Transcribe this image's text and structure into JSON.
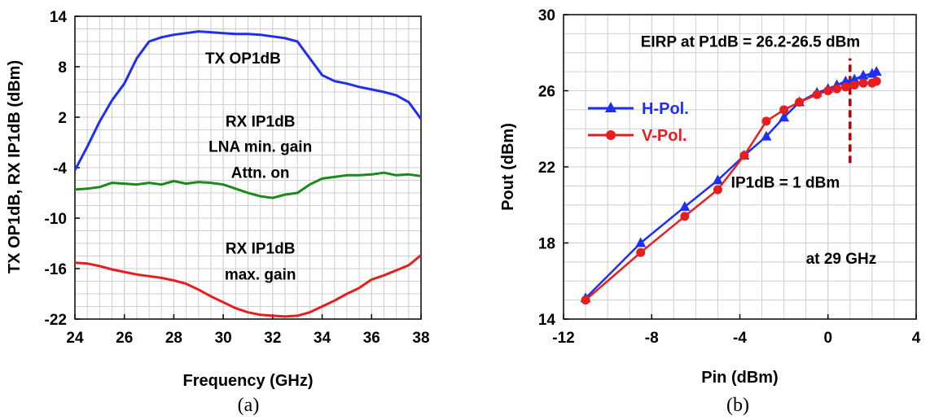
{
  "chart_data": [
    {
      "type": "line",
      "xlabel": "Frequency (GHz)",
      "ylabel": "TX OP1dB, RX IP1dB (dBm)",
      "xlim": [
        24,
        38
      ],
      "ylim": [
        -22,
        14
      ],
      "x_ticks": [
        24,
        26,
        28,
        30,
        32,
        34,
        36,
        38
      ],
      "y_ticks": [
        -22,
        -16,
        -10,
        -4,
        2,
        8,
        14
      ],
      "x_tick_labels": [
        "24",
        "26",
        "28",
        "30",
        "32",
        "34",
        "36",
        "38"
      ],
      "y_tick_labels": [
        "-22",
        "-16",
        "-10",
        "-4",
        "2",
        "8",
        "14"
      ],
      "grid": true,
      "panel_label": "(a)",
      "annotations": [
        {
          "text": "TX OP1dB",
          "x": 30.8,
          "y": 8.4
        },
        {
          "text": "RX IP1dB",
          "x": 31.5,
          "y": 0.9
        },
        {
          "text": "LNA min. gain",
          "x": 31.5,
          "y": -2.1
        },
        {
          "text": "Attn. on",
          "x": 31.5,
          "y": -5.2
        },
        {
          "text": "RX IP1dB",
          "x": 31.5,
          "y": -14.2
        },
        {
          "text": "max. gain",
          "x": 31.5,
          "y": -17.3
        }
      ],
      "series": [
        {
          "color": "#1f2ff0",
          "x": [
            24,
            24.5,
            25,
            25.5,
            26,
            26.5,
            27,
            27.5,
            28,
            28.5,
            29,
            29.5,
            30,
            30.5,
            31,
            31.5,
            32,
            32.5,
            33,
            33.5,
            34,
            34.5,
            35,
            35.5,
            36,
            36.5,
            37,
            37.5,
            38
          ],
          "y": [
            -4.3,
            -1.5,
            1.5,
            4.0,
            6.0,
            9.0,
            11.0,
            11.5,
            11.8,
            12.0,
            12.2,
            12.1,
            12.0,
            11.9,
            11.9,
            11.8,
            11.6,
            11.4,
            11.0,
            9.0,
            7.0,
            6.3,
            6.0,
            5.6,
            5.3,
            5.0,
            4.6,
            3.8,
            1.8
          ]
        },
        {
          "color": "#1a8a1a",
          "x": [
            24,
            24.5,
            25,
            25.5,
            26,
            26.5,
            27,
            27.5,
            28,
            28.5,
            29,
            29.5,
            30,
            30.5,
            31,
            31.5,
            32,
            32.5,
            33,
            33.5,
            34,
            34.5,
            35,
            35.5,
            36,
            36.5,
            37,
            37.5,
            38
          ],
          "y": [
            -6.6,
            -6.5,
            -6.3,
            -5.8,
            -5.9,
            -6.0,
            -5.8,
            -6.0,
            -5.6,
            -5.9,
            -5.7,
            -5.8,
            -6.0,
            -6.5,
            -7.0,
            -7.4,
            -7.6,
            -7.2,
            -7.0,
            -6.0,
            -5.3,
            -5.1,
            -4.9,
            -4.9,
            -4.8,
            -4.6,
            -4.9,
            -4.8,
            -5.0
          ]
        },
        {
          "color": "#e81e1e",
          "x": [
            24,
            24.5,
            25,
            25.5,
            26,
            26.5,
            27,
            27.5,
            28,
            28.5,
            29,
            29.5,
            30,
            30.5,
            31,
            31.5,
            32,
            32.5,
            33,
            33.5,
            34,
            34.5,
            35,
            35.5,
            36,
            36.5,
            37,
            37.5,
            38
          ],
          "y": [
            -15.3,
            -15.4,
            -15.7,
            -16.1,
            -16.4,
            -16.7,
            -16.9,
            -17.1,
            -17.4,
            -17.8,
            -18.5,
            -19.3,
            -20.0,
            -20.7,
            -21.2,
            -21.5,
            -21.6,
            -21.7,
            -21.6,
            -21.2,
            -20.5,
            -19.8,
            -19.0,
            -18.3,
            -17.3,
            -16.8,
            -16.2,
            -15.6,
            -14.4
          ]
        }
      ]
    },
    {
      "type": "line",
      "xlabel": "Pin (dBm)",
      "ylabel": "Pout (dBm)",
      "xlim": [
        -12,
        4
      ],
      "ylim": [
        14,
        30
      ],
      "x_ticks": [
        -12,
        -8,
        -4,
        0,
        4
      ],
      "y_ticks": [
        14,
        18,
        22,
        26,
        30
      ],
      "x_tick_labels": [
        "-12",
        "-8",
        "-4",
        "0",
        "4"
      ],
      "y_tick_labels": [
        "14",
        "18",
        "22",
        "26",
        "30"
      ],
      "grid": true,
      "legend": "center-left",
      "panel_label": "(b)",
      "annotations": [
        {
          "text": "EIRP at P1dB = 26.2-26.5 dBm",
          "x": -8.5,
          "y": 28.3
        },
        {
          "text": "IP1dB = 1 dBm",
          "x": -4.4,
          "y": 20.9
        },
        {
          "text": "at 29 GHz",
          "x": -1.0,
          "y": 16.9
        }
      ],
      "reference_line": {
        "x": 1.0,
        "y_range": [
          22.2,
          27.7
        ],
        "color": "#b30000"
      },
      "series": [
        {
          "name": "H-Pol.",
          "color": "#1f2ff0",
          "marker": "triangle",
          "x": [
            -11,
            -8.5,
            -6.5,
            -5,
            -3.8,
            -2.8,
            -2,
            -1.3,
            -0.5,
            0,
            0.4,
            0.8,
            1.2,
            1.6,
            2.0,
            2.2
          ],
          "y": [
            15.1,
            18.0,
            19.9,
            21.3,
            22.6,
            23.6,
            24.6,
            25.4,
            25.9,
            26.1,
            26.3,
            26.5,
            26.6,
            26.8,
            26.9,
            27.0
          ]
        },
        {
          "name": "V-Pol.",
          "color": "#e81e1e",
          "marker": "circle",
          "x": [
            -11,
            -8.5,
            -6.5,
            -5,
            -3.8,
            -2.8,
            -2,
            -1.3,
            -0.5,
            0,
            0.4,
            0.8,
            1.2,
            1.6,
            2.0,
            2.2
          ],
          "y": [
            15.0,
            17.5,
            19.4,
            20.8,
            22.6,
            24.4,
            25.0,
            25.4,
            25.8,
            26.0,
            26.1,
            26.2,
            26.3,
            26.4,
            26.4,
            26.5
          ]
        }
      ]
    }
  ]
}
